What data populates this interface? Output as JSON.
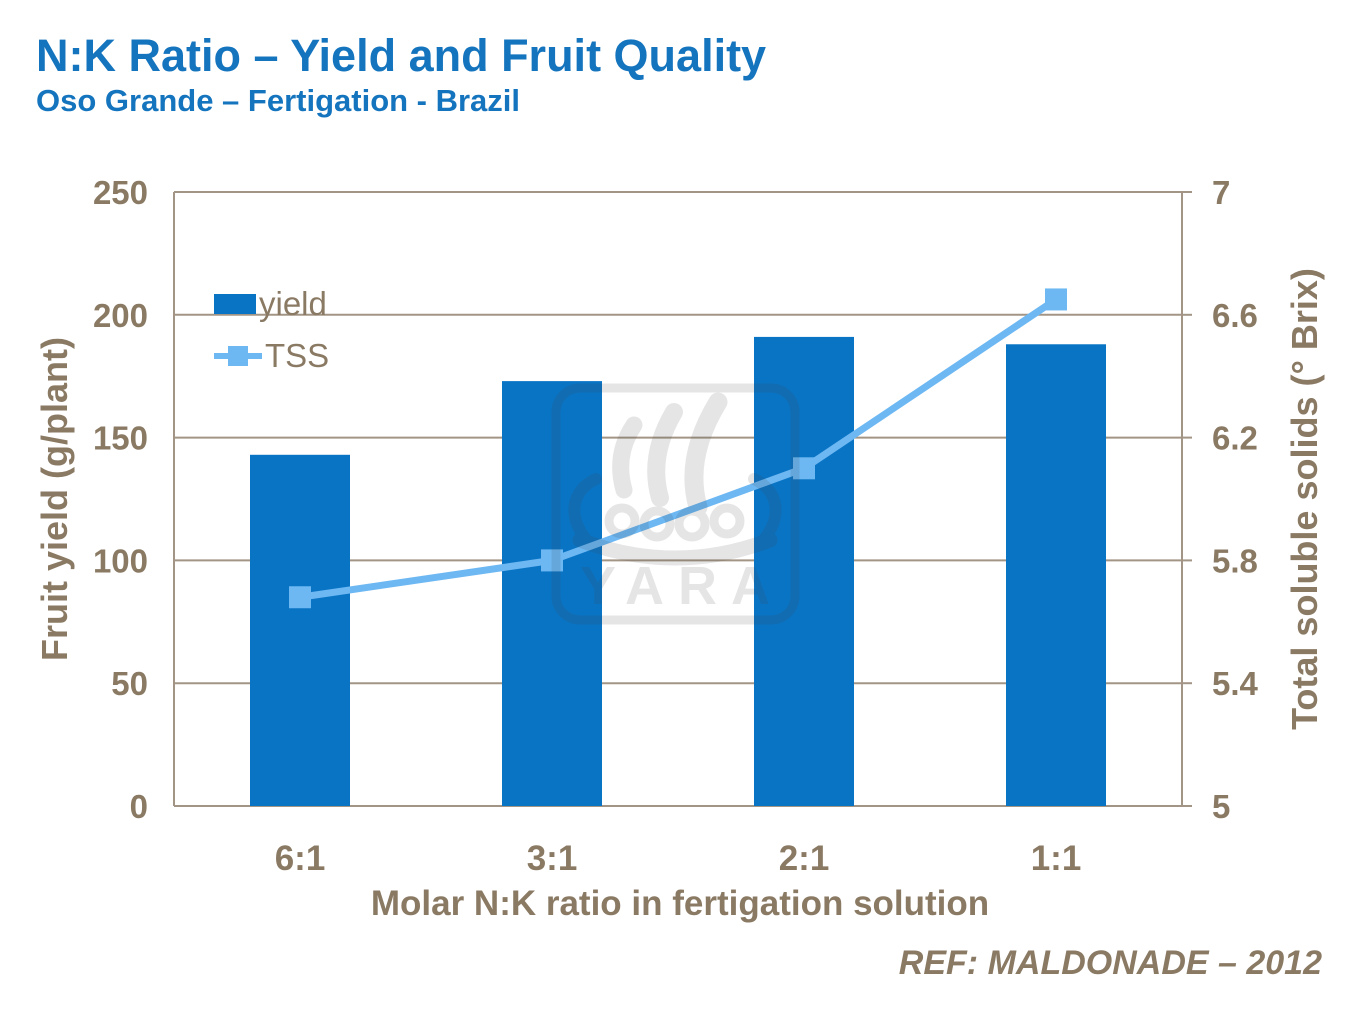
{
  "slide": {
    "title": "N:K Ratio – Yield and Fruit Quality",
    "subtitle": "Oso Grande – Fertigation - Brazil",
    "reference": "REF: MALDONADE – 2012",
    "watermark_text": "YARA"
  },
  "colors": {
    "title_blue": "#1474be",
    "bar_blue": "#0a74c4",
    "line_blue": "#6db8f3",
    "axis_text_brown": "#8a7a64",
    "grid_brown": "#a39585",
    "watermark_gray": "#3f3f3f",
    "background": "#ffffff"
  },
  "legend": {
    "position": "inside-top-left",
    "items": [
      {
        "label": "yield",
        "swatch": "bar"
      },
      {
        "label": "TSS",
        "swatch": "line-marker"
      }
    ]
  },
  "chart_data": {
    "type": "combo",
    "subtypes": [
      "bar",
      "line"
    ],
    "categories": [
      "6:1",
      "3:1",
      "2:1",
      "1:1"
    ],
    "series": [
      {
        "name": "yield",
        "type": "bar",
        "axis": "left",
        "values": [
          143,
          173,
          191,
          188
        ]
      },
      {
        "name": "TSS",
        "type": "line",
        "axis": "right",
        "marker": "square",
        "values": [
          5.68,
          5.8,
          6.1,
          6.65
        ]
      }
    ],
    "title": "N:K Ratio – Yield and Fruit Quality",
    "xlabel": "Molar N:K ratio in fertigation solution",
    "left_axis": {
      "label": "Fruit yield (g/plant)",
      "min": 0,
      "max": 250,
      "ticks": [
        0,
        50,
        100,
        150,
        200,
        250
      ]
    },
    "right_axis": {
      "label": "Total soluble solids (° Brix)",
      "min": 5,
      "max": 7,
      "ticks": [
        5,
        5.4,
        5.8,
        6.2,
        6.6,
        7
      ]
    },
    "grid": true,
    "legend_position": "top-left-inside"
  }
}
